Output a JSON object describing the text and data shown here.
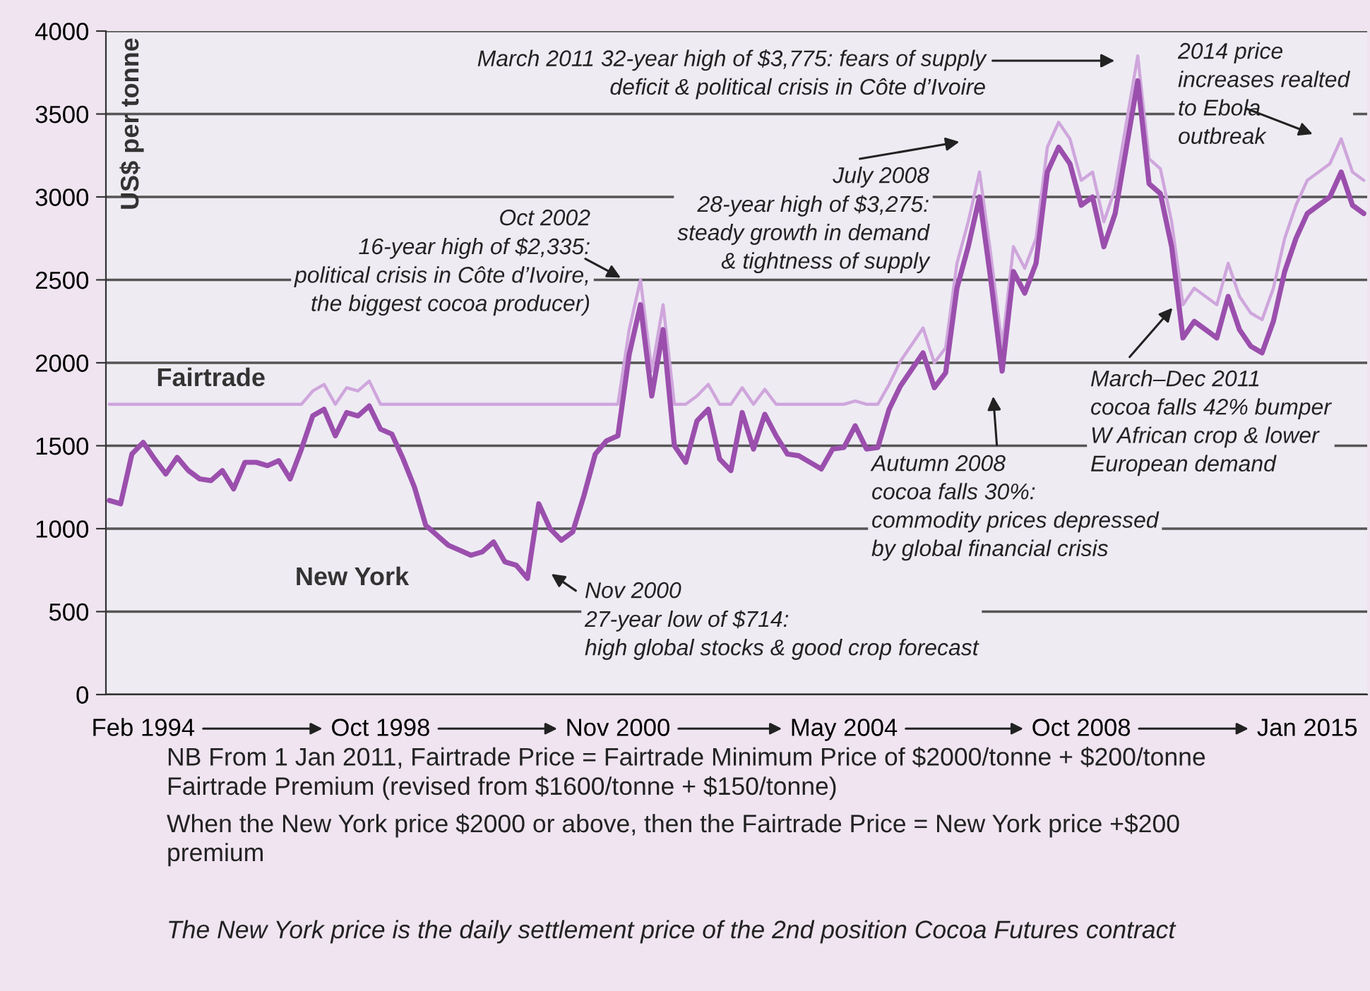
{
  "chart_data": {
    "type": "line",
    "ylabel": "US$ per tonne",
    "categories": [
      null,
      null,
      null,
      "Feb 1994",
      null,
      null,
      null,
      null,
      null,
      null,
      null,
      null,
      null,
      null,
      null,
      null,
      null,
      null,
      null,
      null,
      null,
      null,
      null,
      null,
      "Oct 1998",
      null,
      null,
      null,
      null,
      null,
      null,
      null,
      null,
      null,
      null,
      null,
      null,
      null,
      null,
      null,
      null,
      null,
      null,
      null,
      null,
      "Nov 2000",
      null,
      null,
      null,
      null,
      null,
      null,
      null,
      null,
      null,
      null,
      null,
      null,
      null,
      null,
      null,
      null,
      null,
      null,
      null,
      "May 2004",
      null,
      null,
      null,
      null,
      null,
      null,
      null,
      null,
      null,
      null,
      null,
      null,
      null,
      null,
      null,
      null,
      null,
      null,
      null,
      null,
      "Oct 2008",
      null,
      null,
      null,
      null,
      null,
      null,
      null,
      null,
      null,
      null,
      null,
      null,
      null,
      null,
      null,
      null,
      null,
      null,
      null,
      "Jan 2015",
      null,
      null,
      null,
      null,
      null
    ],
    "series": [
      {
        "name": "Fairtrade",
        "color": "#cfa6dc",
        "values": [
          1750,
          1750,
          1750,
          1750,
          1750,
          1750,
          1750,
          1750,
          1750,
          1750,
          1750,
          1750,
          1750,
          1750,
          1750,
          1750,
          1750,
          1750,
          1830,
          1870,
          1750,
          1850,
          1830,
          1890,
          1750,
          1750,
          1750,
          1750,
          1750,
          1750,
          1750,
          1750,
          1750,
          1750,
          1750,
          1750,
          1750,
          1750,
          1750,
          1750,
          1750,
          1750,
          1750,
          1750,
          1750,
          1750,
          2200,
          2500,
          1950,
          2350,
          1750,
          1750,
          1800,
          1870,
          1750,
          1750,
          1850,
          1750,
          1840,
          1750,
          1750,
          1750,
          1750,
          1750,
          1750,
          1750,
          1770,
          1750,
          1750,
          1870,
          2010,
          2110,
          2210,
          2000,
          2090,
          2600,
          2850,
          3150,
          2650,
          2100,
          2700,
          2570,
          2750,
          3300,
          3450,
          3350,
          3100,
          3150,
          2850,
          3050,
          3450,
          3850,
          3230,
          3170,
          2850,
          2350,
          2450,
          2400,
          2350,
          2600,
          2400,
          2300,
          2260,
          2450,
          2750,
          2950,
          3100,
          3150,
          3200,
          3350,
          3150,
          3100
        ]
      },
      {
        "name": "New York",
        "color": "#9b4fad",
        "values": [
          1170,
          1150,
          1450,
          1520,
          1420,
          1330,
          1430,
          1350,
          1300,
          1290,
          1350,
          1240,
          1400,
          1400,
          1380,
          1410,
          1300,
          1480,
          1680,
          1720,
          1560,
          1700,
          1680,
          1740,
          1600,
          1570,
          1420,
          1250,
          1020,
          960,
          900,
          870,
          840,
          860,
          920,
          800,
          780,
          700,
          1150,
          1000,
          930,
          980,
          1200,
          1450,
          1530,
          1560,
          2050,
          2350,
          1800,
          2200,
          1500,
          1400,
          1650,
          1720,
          1420,
          1350,
          1700,
          1480,
          1690,
          1560,
          1450,
          1440,
          1400,
          1360,
          1480,
          1490,
          1620,
          1480,
          1490,
          1720,
          1860,
          1960,
          2060,
          1850,
          1940,
          2450,
          2700,
          3000,
          2500,
          1950,
          2550,
          2420,
          2600,
          3150,
          3300,
          3200,
          2950,
          3000,
          2700,
          2900,
          3300,
          3700,
          3080,
          3020,
          2700,
          2150,
          2250,
          2200,
          2150,
          2400,
          2200,
          2100,
          2060,
          2250,
          2550,
          2750,
          2900,
          2950,
          3000,
          3150,
          2950,
          2900
        ]
      }
    ],
    "ylim": [
      0,
      4000
    ],
    "yticks": [
      0,
      500,
      1000,
      1500,
      2000,
      2500,
      3000,
      3500,
      4000
    ],
    "grid": "y",
    "legend": false,
    "annotations": [
      "March 2011 32-year high of $3,775: fears of supply\ndeficit & political crisis in Côte d’Ivoire",
      "2014 price\nincreases realted\nto Ebola\noutbreak",
      "July 2008\n28-year high of $3,275:\nsteady growth in demand\n& tightness of supply",
      "Oct 2002\n16-year high of $2,335:\npolitical crisis in Côte d’Ivoire,\nthe biggest cocoa producer)",
      "Nov 2000\n27-year low of $714:\nhigh global stocks & good crop forecast",
      "Autumn 2008\ncocoa falls 30%:\ncommodity prices depressed\nby global financial crisis",
      "March–Dec 2011\ncocoa falls 42% bumper\nW African crop & lower\nEuropean demand",
      "NB From 1 Jan 2011, Fairtrade Price = Fairtrade Minimum Price of $2000/tonne + $200/tonne\nFairtrade Premium (revised from $1600/tonne + $150/tonne)",
      "When the New York price $2000 or above, then the Fairtrade Price = New York price +$200\npremium",
      "The New York price is the daily settlement price of the 2nd position Cocoa Futures contract"
    ]
  }
}
